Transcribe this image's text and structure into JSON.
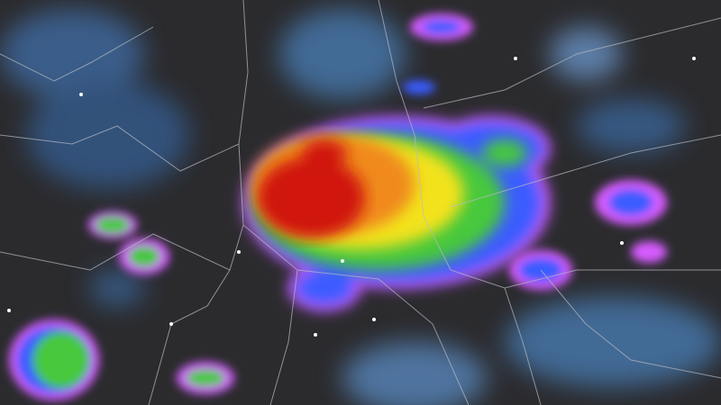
{
  "map": {
    "type": "satellite-radar-overlay",
    "colors": {
      "background": "#2b2b2e",
      "cloud": "#4a7fb8",
      "low": "#7a3cf0",
      "light": "#3b5bff",
      "moderate": "#46c83c",
      "heavy": "#f2e21a",
      "intense": "#f08a1a",
      "extreme": "#d0140f",
      "edge": "#d65cff",
      "borders": "#b8bcc4"
    },
    "icons": [
      "city-dot"
    ]
  }
}
